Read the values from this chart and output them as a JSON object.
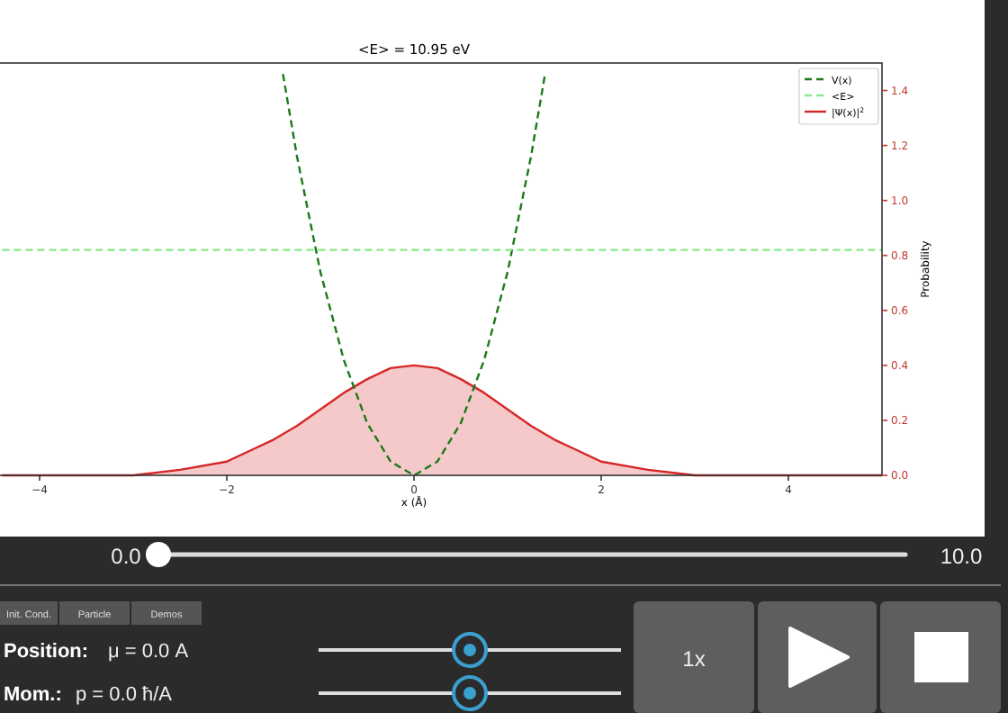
{
  "chart_data": {
    "type": "line",
    "title": "<E> = 10.95 eV",
    "xlabel": "x (Å)",
    "ylabel": "Probability",
    "xlim": [
      -5,
      5
    ],
    "xticks": [
      {
        "value": -4,
        "label": "−4"
      },
      {
        "value": -2,
        "label": "−2"
      },
      0,
      2,
      4
    ],
    "ylim": [
      0,
      1.5
    ],
    "yticks": [
      {
        "value": 0,
        "label": "0.0"
      },
      {
        "value": 0.2,
        "label": "0.2"
      },
      {
        "value": 0.4,
        "label": "0.4"
      },
      {
        "value": 0.6,
        "label": "0.6"
      },
      {
        "value": 0.8,
        "label": "0.8"
      },
      {
        "value": 1,
        "label": "1.0"
      },
      {
        "value": 1.2,
        "label": "1.2"
      },
      {
        "value": 1.4,
        "label": "1.4"
      }
    ],
    "legend": "top right",
    "grid": false,
    "series": [
      {
        "name": "V(x)",
        "color": "#1a7a1a",
        "line_style": "dashed",
        "x": [
          -1.4,
          -1.25,
          -1,
          -0.75,
          -0.5,
          -0.25,
          0,
          0.25,
          0.5,
          0.75,
          1,
          1.25,
          1.4
        ],
        "values": [
          1.46,
          1.16,
          0.74,
          0.42,
          0.19,
          0.05,
          0,
          0.05,
          0.19,
          0.42,
          0.74,
          1.16,
          1.46
        ]
      },
      {
        "name": "<E>",
        "color": "#88e888",
        "line_style": "dashed",
        "x": [
          -4.4,
          5
        ],
        "values": [
          0.82,
          0.82
        ]
      },
      {
        "name": "|Ψ(x)|$^{2}$",
        "type": "area",
        "color": "#d62728",
        "line_style": "solid",
        "x": [
          -4.4,
          -4,
          -3.5,
          -3,
          -2.5,
          -2,
          -1.75,
          -1.5,
          -1.25,
          -1,
          -0.75,
          -0.5,
          -0.25,
          0,
          0.25,
          0.5,
          0.75,
          1,
          1.25,
          1.5,
          1.75,
          2,
          2.5,
          3,
          3.5,
          4,
          4.5,
          5
        ],
        "values": [
          0,
          0,
          0,
          0,
          0.02,
          0.05,
          0.09,
          0.13,
          0.18,
          0.24,
          0.3,
          0.35,
          0.39,
          0.4,
          0.39,
          0.35,
          0.3,
          0.24,
          0.18,
          0.13,
          0.09,
          0.05,
          0.02,
          0,
          0,
          0,
          0,
          0
        ]
      }
    ],
    "annotations": [
      "0.0",
      "10.0",
      "Init. Cond.",
      "Particle",
      "Demos",
      "Position:",
      "μ = 0.0 A",
      "Mom.:",
      "p = 0.0 ħ/A",
      "1x"
    ]
  }
}
